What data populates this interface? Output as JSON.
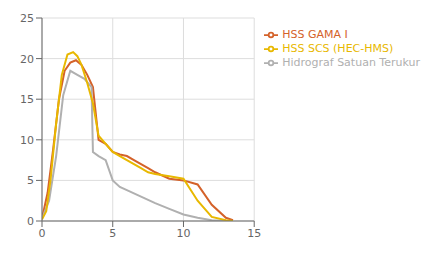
{
  "chart_data": {
    "type": "line",
    "xlim": [
      0,
      15
    ],
    "ylim": [
      0,
      25
    ],
    "xticks": [
      0,
      5,
      10,
      15
    ],
    "yticks": [
      0,
      5,
      10,
      15,
      20,
      25
    ],
    "grid": true,
    "legend": "right",
    "series": [
      {
        "name": "HSS GAMA I",
        "color": "#d4622a",
        "x": [
          0,
          0.4,
          0.8,
          1.2,
          1.6,
          2.0,
          2.4,
          2.8,
          3.2,
          3.6,
          4.0,
          4.5,
          5.0,
          5.5,
          6.0,
          6.5,
          7.0,
          7.5,
          8.0,
          9.0,
          10.0,
          11.0,
          12.0,
          13.0,
          13.5
        ],
        "values": [
          0.3,
          3.5,
          9.0,
          15.0,
          18.5,
          19.5,
          19.8,
          19.2,
          18.0,
          16.5,
          10.0,
          9.5,
          8.5,
          8.2,
          8.0,
          7.5,
          7.0,
          6.5,
          6.0,
          5.2,
          5.0,
          4.5,
          2.0,
          0.4,
          0.1
        ]
      },
      {
        "name": "Hidrograf Satuan Terukur",
        "color": "#b0b0b0",
        "x": [
          0,
          0.5,
          1.0,
          1.5,
          2.0,
          2.5,
          3.0,
          3.5,
          3.6,
          4.0,
          4.5,
          5.0,
          5.5,
          6.0,
          7.0,
          8.0,
          9.0,
          10.0,
          11.0,
          12.0,
          13.0
        ],
        "values": [
          0.3,
          2.5,
          8.0,
          15.5,
          18.5,
          18.0,
          17.5,
          16.5,
          8.5,
          8.0,
          7.5,
          5.0,
          4.2,
          3.8,
          3.0,
          2.2,
          1.5,
          0.8,
          0.4,
          0.1,
          0.0
        ]
      },
      {
        "name": "HSS SCS (HEC-HMS)",
        "color": "#e8b800",
        "x": [
          0,
          0.3,
          0.6,
          1.0,
          1.4,
          1.8,
          2.2,
          2.5,
          2.8,
          3.2,
          3.6,
          4.0,
          4.5,
          5.0,
          5.5,
          6.0,
          6.5,
          7.0,
          7.5,
          8.0,
          9.0,
          10.0,
          11.0,
          12.0,
          13.0,
          13.5
        ],
        "values": [
          0.2,
          1.2,
          5.0,
          12.0,
          18.0,
          20.5,
          20.8,
          20.3,
          19.2,
          17.0,
          14.5,
          10.5,
          9.5,
          8.5,
          8.0,
          7.5,
          7.0,
          6.5,
          6.0,
          5.8,
          5.5,
          5.2,
          2.5,
          0.5,
          0.1,
          0.0
        ]
      }
    ]
  }
}
